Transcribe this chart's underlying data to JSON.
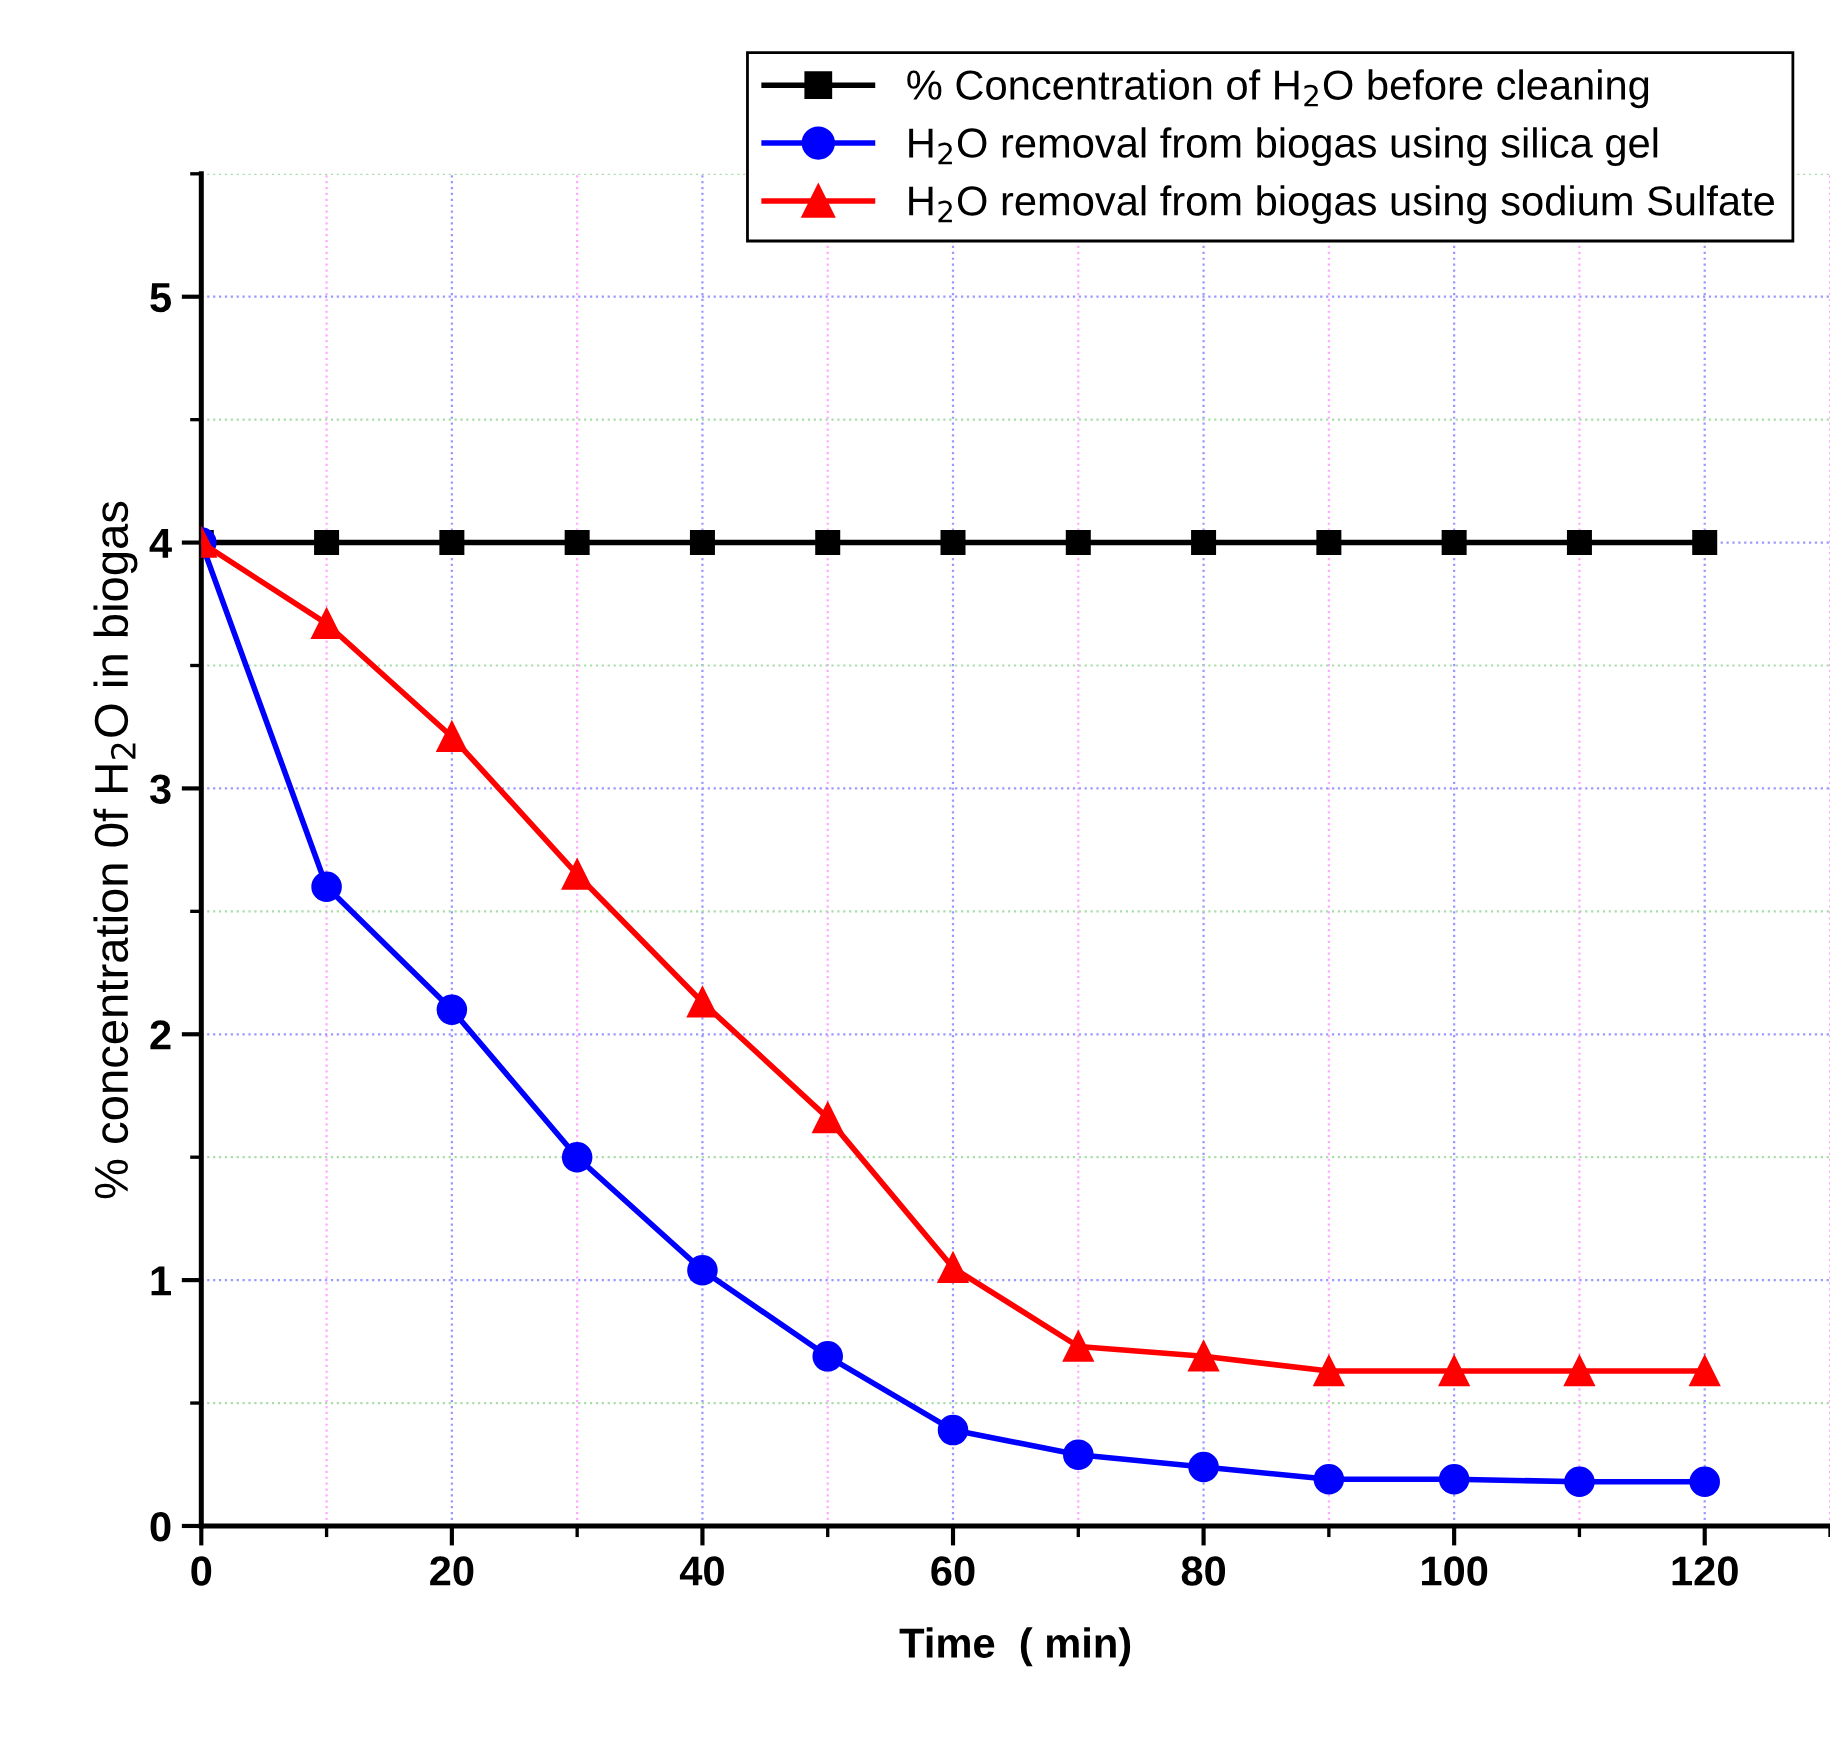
{
  "chart_data": {
    "type": "line",
    "xlabel": "Time  ( min)",
    "ylabel": "% concentration 0f H$_{2}$O in biogas",
    "x": [
      0,
      10,
      20,
      30,
      40,
      50,
      60,
      70,
      80,
      90,
      100,
      110,
      120
    ],
    "series": [
      {
        "name": "% Concentration of H$_{2}$O before cleaning",
        "color": "#000000",
        "marker": "square",
        "values": [
          4,
          4,
          4,
          4,
          4,
          4,
          4,
          4,
          4,
          4,
          4,
          4,
          4
        ]
      },
      {
        "name": "H$_{2}$O removal from biogas using silica gel",
        "color": "#0000ff",
        "marker": "circle",
        "values": [
          4,
          2.6,
          2.1,
          1.5,
          1.04,
          0.69,
          0.39,
          0.29,
          0.24,
          0.19,
          0.19,
          0.18,
          0.18
        ]
      },
      {
        "name": "H$_{2}$O removal from biogas using sodium Sulfate",
        "color": "#ff0000",
        "marker": "triangle",
        "values": [
          4,
          3.67,
          3.21,
          2.65,
          2.13,
          1.66,
          1.05,
          0.73,
          0.69,
          0.63,
          0.63,
          0.63,
          0.63
        ]
      }
    ],
    "xlim": [
      0,
      130
    ],
    "ylim": [
      0,
      5.5
    ],
    "xticks": [
      0,
      {
        "value": 10,
        "label": null
      },
      20,
      {
        "value": 30,
        "label": null
      },
      40,
      {
        "value": 50,
        "label": null
      },
      60,
      {
        "value": 70,
        "label": null
      },
      80,
      {
        "value": 90,
        "label": null
      },
      100,
      {
        "value": 110,
        "label": null
      },
      120,
      {
        "value": 130,
        "label": null
      }
    ],
    "yticks": [
      0,
      {
        "value": 0.5,
        "label": null
      },
      1,
      {
        "value": 1.5,
        "label": null
      },
      2,
      {
        "value": 2.5,
        "label": null
      },
      3,
      {
        "value": 3.5,
        "label": null
      },
      4,
      {
        "value": 4.5,
        "label": null
      },
      5,
      {
        "value": 5.5,
        "label": null
      }
    ],
    "grid": true,
    "legend": "top right",
    "line_style": "solid"
  }
}
